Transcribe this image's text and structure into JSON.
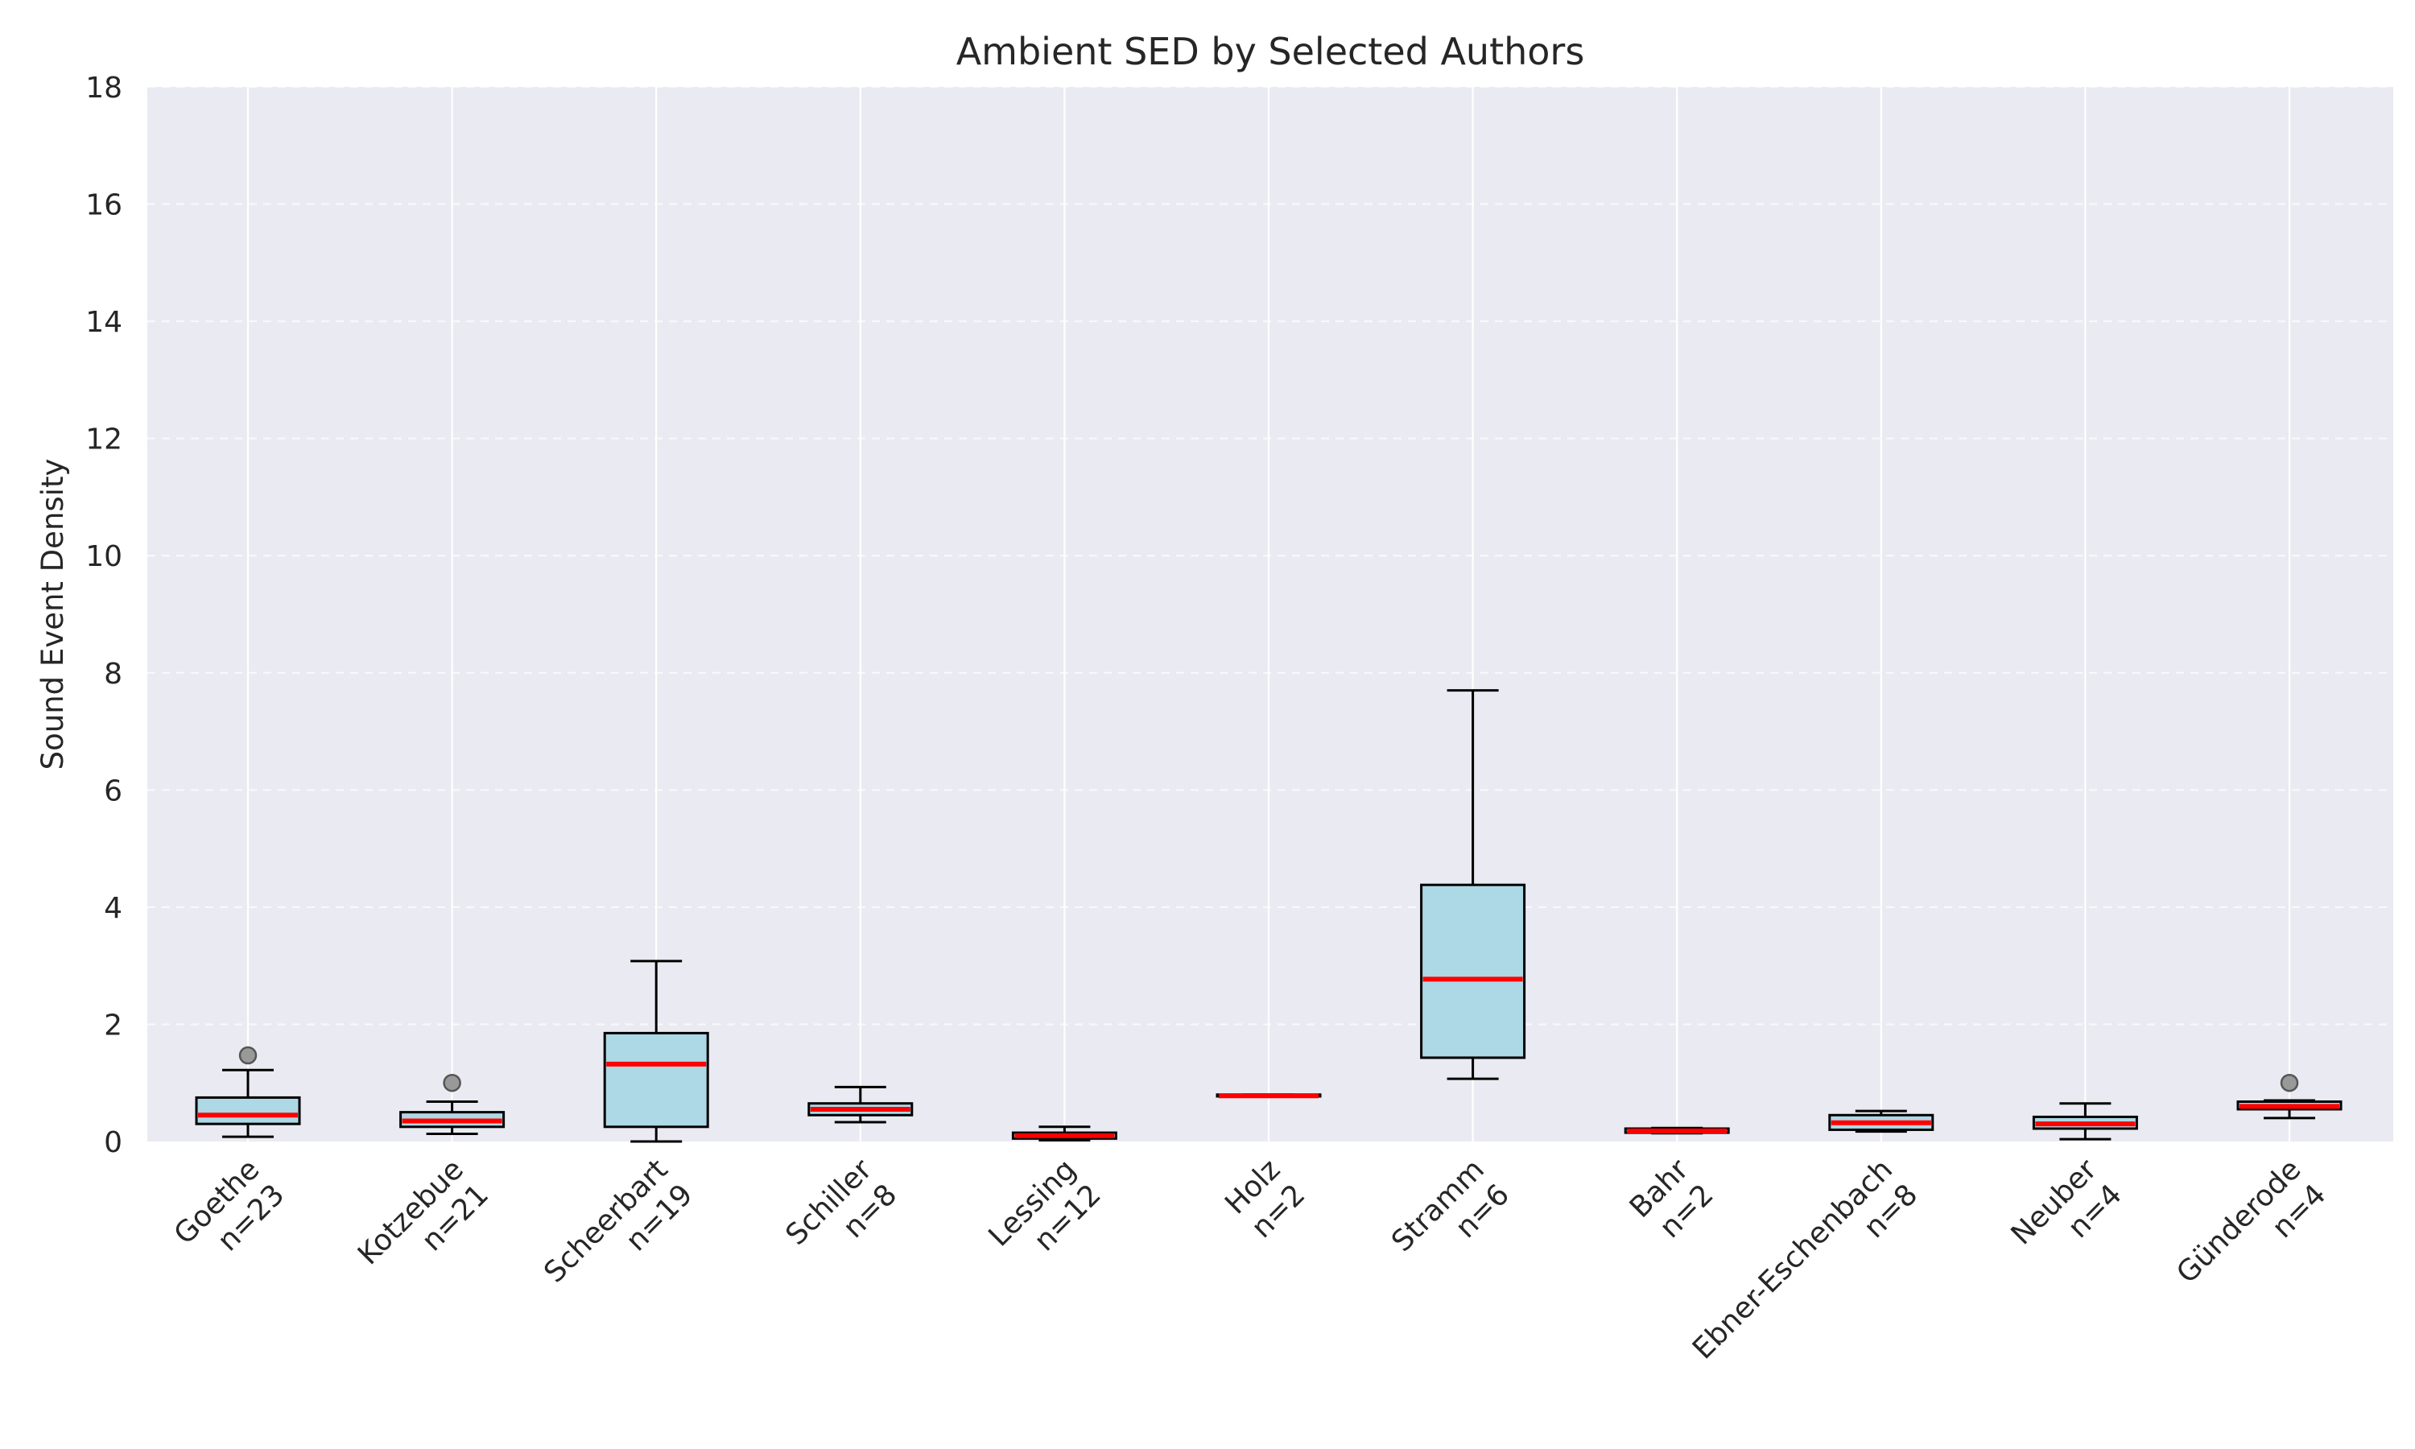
{
  "chart_data": {
    "type": "box",
    "title": "Ambient SED by Selected Authors",
    "ylabel": "Sound Event Density",
    "xlabel": "",
    "ylim": [
      0,
      18
    ],
    "yticks": [
      0,
      2,
      4,
      6,
      8,
      10,
      12,
      14,
      16,
      18
    ],
    "grid": "y-dashed, x-solid",
    "colors": {
      "background": "#eaeaf2",
      "box_fill": "#add8e6",
      "box_edge": "#000000",
      "median": "#ff0000",
      "flier": "#999999",
      "grid": "#ffffff"
    },
    "categories": [
      {
        "name": "Goethe",
        "n_label": "n=23",
        "whislo": 0.08,
        "q1": 0.3,
        "med": 0.45,
        "q3": 0.75,
        "whishi": 1.22,
        "fliers": [
          1.47
        ]
      },
      {
        "name": "Kotzebue",
        "n_label": "n=21",
        "whislo": 0.13,
        "q1": 0.25,
        "med": 0.35,
        "q3": 0.5,
        "whishi": 0.68,
        "fliers": [
          1.0
        ]
      },
      {
        "name": "Scheerbart",
        "n_label": "n=19",
        "whislo": 0.0,
        "q1": 0.25,
        "med": 1.32,
        "q3": 1.85,
        "whishi": 3.08,
        "fliers": []
      },
      {
        "name": "Schiller",
        "n_label": "n=8",
        "whislo": 0.33,
        "q1": 0.45,
        "med": 0.55,
        "q3": 0.65,
        "whishi": 0.93,
        "fliers": []
      },
      {
        "name": "Lessing",
        "n_label": "n=12",
        "whislo": 0.02,
        "q1": 0.05,
        "med": 0.1,
        "q3": 0.15,
        "whishi": 0.25,
        "fliers": []
      },
      {
        "name": "Holz",
        "n_label": "n=2",
        "whislo": 0.77,
        "q1": 0.77,
        "med": 0.78,
        "q3": 0.8,
        "whishi": 0.8,
        "fliers": []
      },
      {
        "name": "Stramm",
        "n_label": "n=6",
        "whislo": 1.07,
        "q1": 1.43,
        "med": 2.77,
        "q3": 4.38,
        "whishi": 7.7,
        "fliers": []
      },
      {
        "name": "Bahr",
        "n_label": "n=2",
        "whislo": 0.14,
        "q1": 0.15,
        "med": 0.18,
        "q3": 0.22,
        "whishi": 0.23,
        "fliers": []
      },
      {
        "name": "Ebner-Eschenbach",
        "n_label": "n=8",
        "whislo": 0.17,
        "q1": 0.2,
        "med": 0.32,
        "q3": 0.45,
        "whishi": 0.52,
        "fliers": []
      },
      {
        "name": "Neuber",
        "n_label": "n=4",
        "whislo": 0.04,
        "q1": 0.22,
        "med": 0.3,
        "q3": 0.42,
        "whishi": 0.65,
        "fliers": []
      },
      {
        "name": "Günderode",
        "n_label": "n=4",
        "whislo": 0.4,
        "q1": 0.55,
        "med": 0.6,
        "q3": 0.68,
        "whishi": 0.7,
        "fliers": [
          1.0
        ]
      }
    ]
  }
}
